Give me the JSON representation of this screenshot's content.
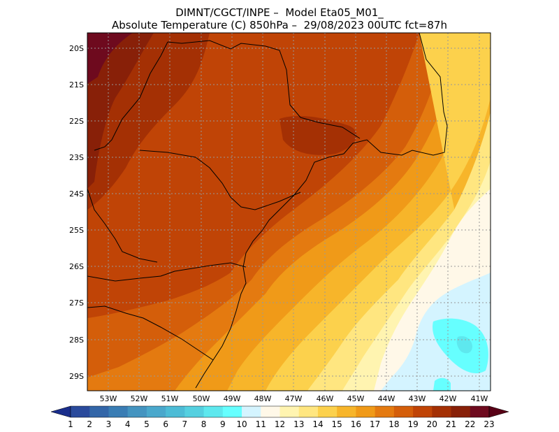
{
  "title_line1": "DIMNT/CGCT/INPE –  Model Eta05_M01_",
  "title_line2": "Absolute Temperature (C) 850hPa –  29/08/2023 00UTC fct=87h",
  "lat_labels": [
    "20S",
    "21S",
    "22S",
    "23S",
    "24S",
    "25S",
    "26S",
    "27S",
    "28S",
    "29S"
  ],
  "lon_labels": [
    "53W",
    "52W",
    "51W",
    "50W",
    "49W",
    "48W",
    "47W",
    "46W",
    "45W",
    "44W",
    "43W",
    "42W",
    "41W"
  ],
  "colorbar": {
    "labels": [
      "1",
      "2",
      "3",
      "4",
      "5",
      "6",
      "7",
      "8",
      "9",
      "10",
      "11",
      "12",
      "13",
      "14",
      "15",
      "16",
      "17",
      "18",
      "19",
      "20",
      "21",
      "22",
      "23"
    ],
    "colors": [
      "#1a2e8c",
      "#2a4a9c",
      "#3366a8",
      "#3a7db4",
      "#4494c0",
      "#4aa8cc",
      "#4dbcd6",
      "#55d0e0",
      "#5ee8ee",
      "#66ffff",
      "#d4f4ff",
      "#fff8e8",
      "#fff4b0",
      "#ffe680",
      "#fcd14c",
      "#f7b52a",
      "#f09a18",
      "#e47a10",
      "#d45e0a",
      "#c04406",
      "#a43004",
      "#882008",
      "#6e0a1e",
      "#580016"
    ],
    "left_arrow_color": "#1a2e8c",
    "right_arrow_color": "#580016"
  },
  "field_colors": {
    "t23": "#6e0a1e",
    "t22": "#882008",
    "t21": "#a43004",
    "t20": "#c04406",
    "t19": "#d45e0a",
    "t18": "#e47a10",
    "t17": "#f09a18",
    "t16": "#f7b52a",
    "t15": "#fcd14c",
    "t14": "#ffe680",
    "t13": "#fff4b0",
    "t12": "#fff8e8",
    "t11": "#d4f4ff",
    "t10": "#66ffff",
    "t9": "#5ee8ee"
  }
}
